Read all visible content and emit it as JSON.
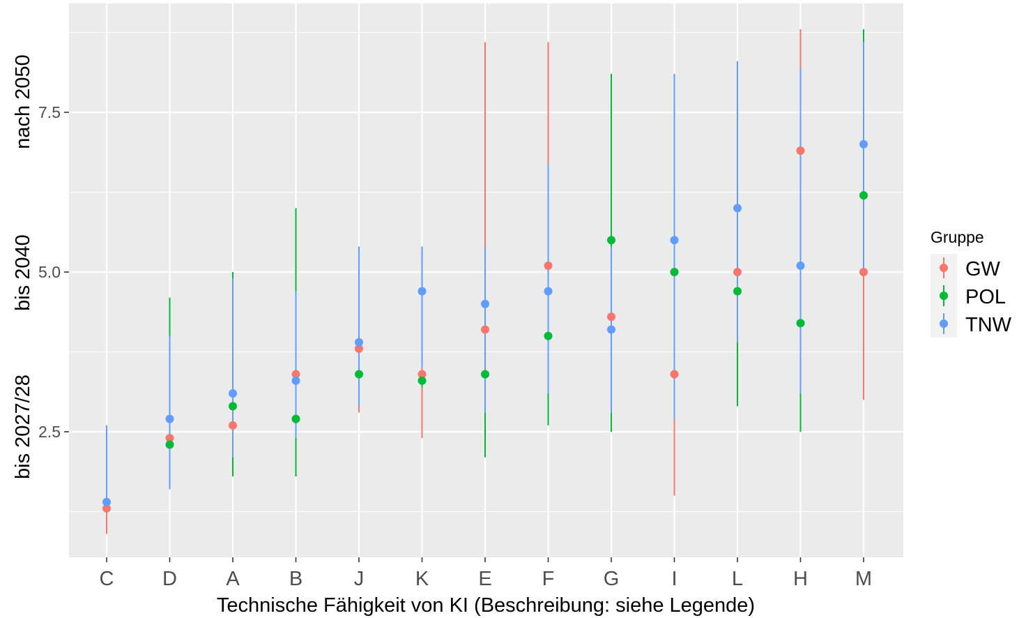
{
  "chart_data": {
    "type": "scatter",
    "subtype": "pointrange",
    "title": "",
    "xlabel": "Technische Fähigkeit von KI (Beschreibung: siehe Legende)",
    "ylabel_segments": [
      "bis 2027/28",
      "bis 2040",
      "nach 2050"
    ],
    "categories": [
      "C",
      "D",
      "A",
      "B",
      "J",
      "K",
      "E",
      "F",
      "G",
      "I",
      "L",
      "H",
      "M"
    ],
    "y_ticks": [
      2.5,
      5.0,
      7.5
    ],
    "y_tick_labels": [
      "2.5",
      "5.0",
      "7.5"
    ],
    "ylim": [
      0.6,
      9.3
    ],
    "grid": true,
    "legend": {
      "title": "Gruppe",
      "position": "right"
    },
    "series": [
      {
        "name": "GW",
        "color": "#F8766D",
        "points": [
          {
            "x": "C",
            "y": 1.3,
            "ymin": 0.9,
            "ymax": 1.4
          },
          {
            "x": "D",
            "y": 2.4,
            "ymin": 2.3,
            "ymax": 2.5
          },
          {
            "x": "A",
            "y": 2.6,
            "ymin": 1.9,
            "ymax": 2.8
          },
          {
            "x": "B",
            "y": 3.4,
            "ymin": 2.3,
            "ymax": 3.4
          },
          {
            "x": "J",
            "y": 3.8,
            "ymin": 2.8,
            "ymax": 3.9
          },
          {
            "x": "K",
            "y": 3.4,
            "ymin": 2.4,
            "ymax": 3.5
          },
          {
            "x": "E",
            "y": 4.1,
            "ymin": 2.9,
            "ymax": 8.6
          },
          {
            "x": "F",
            "y": 5.1,
            "ymin": 3.6,
            "ymax": 8.6
          },
          {
            "x": "G",
            "y": 4.3,
            "ymin": 3.1,
            "ymax": 7.2
          },
          {
            "x": "I",
            "y": 3.4,
            "ymin": 1.5,
            "ymax": 4.7
          },
          {
            "x": "L",
            "y": 5.0,
            "ymin": 3.1,
            "ymax": 5.0
          },
          {
            "x": "H",
            "y": 6.9,
            "ymin": 4.2,
            "ymax": 8.8
          },
          {
            "x": "M",
            "y": 5.0,
            "ymin": 3.0,
            "ymax": 5.0
          }
        ]
      },
      {
        "name": "POL",
        "color": "#00BA38",
        "points": [
          {
            "x": "D",
            "y": 2.3,
            "ymin": 2.3,
            "ymax": 4.6
          },
          {
            "x": "A",
            "y": 2.9,
            "ymin": 1.8,
            "ymax": 5.0
          },
          {
            "x": "B",
            "y": 2.7,
            "ymin": 1.8,
            "ymax": 6.0
          },
          {
            "x": "J",
            "y": 3.4,
            "ymin": 3.4,
            "ymax": 3.4
          },
          {
            "x": "K",
            "y": 3.3,
            "ymin": 3.2,
            "ymax": 3.4
          },
          {
            "x": "E",
            "y": 3.4,
            "ymin": 2.1,
            "ymax": 3.4
          },
          {
            "x": "F",
            "y": 4.0,
            "ymin": 2.6,
            "ymax": 4.0
          },
          {
            "x": "G",
            "y": 5.5,
            "ymin": 2.5,
            "ymax": 8.1
          },
          {
            "x": "I",
            "y": 5.0,
            "ymin": 5.0,
            "ymax": 5.0
          },
          {
            "x": "L",
            "y": 4.7,
            "ymin": 2.9,
            "ymax": 4.7
          },
          {
            "x": "H",
            "y": 4.2,
            "ymin": 2.5,
            "ymax": 4.2
          },
          {
            "x": "M",
            "y": 6.2,
            "ymin": 6.2,
            "ymax": 8.8
          }
        ]
      },
      {
        "name": "TNW",
        "color": "#619CFF",
        "points": [
          {
            "x": "C",
            "y": 1.4,
            "ymin": 1.3,
            "ymax": 2.6
          },
          {
            "x": "D",
            "y": 2.7,
            "ymin": 1.6,
            "ymax": 4.0
          },
          {
            "x": "A",
            "y": 3.1,
            "ymin": 2.1,
            "ymax": 4.9
          },
          {
            "x": "B",
            "y": 3.3,
            "ymin": 2.4,
            "ymax": 4.7
          },
          {
            "x": "J",
            "y": 3.9,
            "ymin": 2.9,
            "ymax": 5.4
          },
          {
            "x": "K",
            "y": 4.7,
            "ymin": 3.5,
            "ymax": 5.4
          },
          {
            "x": "E",
            "y": 4.5,
            "ymin": 2.8,
            "ymax": 5.4
          },
          {
            "x": "F",
            "y": 4.7,
            "ymin": 3.1,
            "ymax": 6.7
          },
          {
            "x": "G",
            "y": 4.1,
            "ymin": 2.8,
            "ymax": 5.4
          },
          {
            "x": "I",
            "y": 5.5,
            "ymin": 2.7,
            "ymax": 8.1
          },
          {
            "x": "L",
            "y": 6.0,
            "ymin": 3.9,
            "ymax": 8.3
          },
          {
            "x": "H",
            "y": 5.1,
            "ymin": 3.1,
            "ymax": 8.2
          },
          {
            "x": "M",
            "y": 7.0,
            "ymin": 5.0,
            "ymax": 8.6
          }
        ]
      }
    ]
  }
}
